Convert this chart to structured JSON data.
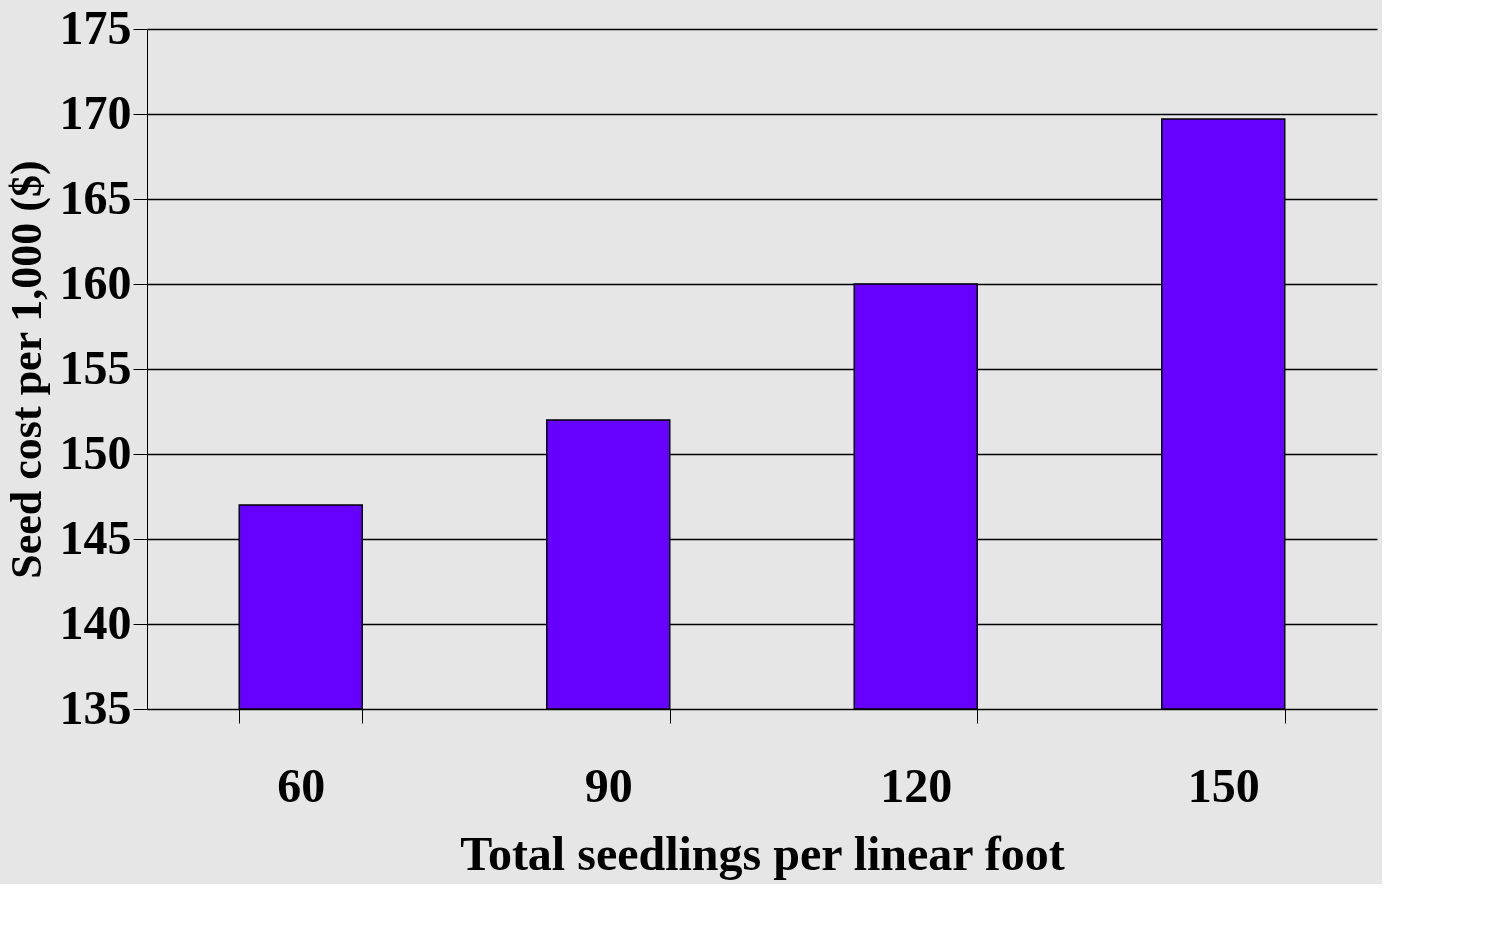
{
  "chart_data": {
    "type": "bar",
    "xlabel": "Total seedlings per linear foot",
    "ylabel": "Seed cost per 1,000 ($)",
    "categories": [
      "60",
      "90",
      "120",
      "150"
    ],
    "values": [
      147,
      152,
      160,
      169.7
    ],
    "color": "#6600ff",
    "ylim": [
      135,
      175
    ],
    "yticks": [
      135,
      140,
      145,
      150,
      155,
      160,
      165,
      170,
      175
    ],
    "grid": "y"
  }
}
